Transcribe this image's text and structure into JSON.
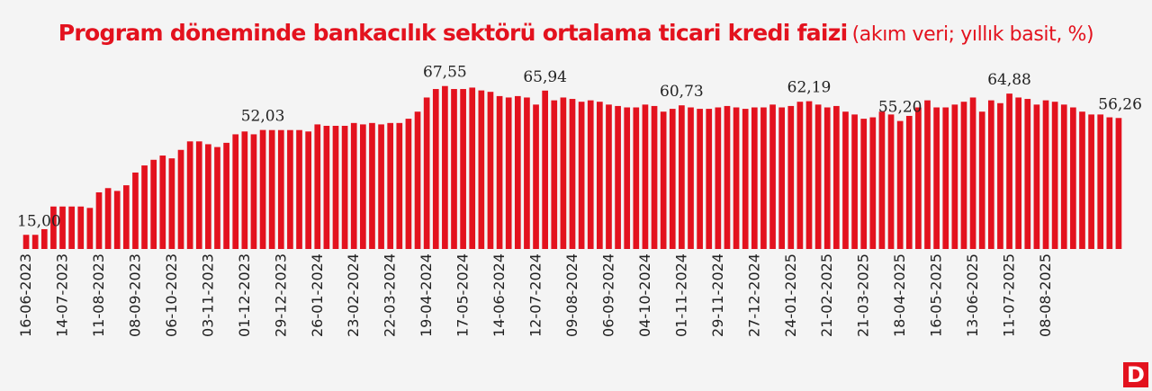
{
  "title": {
    "main": "Program döneminde bankacılık sektörü ortalama ticari kredi faizi",
    "sub": "(akım veri; yıllık basit, %)"
  },
  "brand": {
    "logo_text": "D"
  },
  "colors": {
    "bar": "#e3121e",
    "title": "#e3121e",
    "text": "#222222",
    "background": "#f4f4f4"
  },
  "chart_data": {
    "type": "bar",
    "x_ticks": [
      "16-06-2023",
      "14-07-2023",
      "11-08-2023",
      "08-09-2023",
      "06-10-2023",
      "03-11-2023",
      "01-12-2023",
      "29-12-2023",
      "26-01-2024",
      "23-02-2024",
      "22-03-2024",
      "19-04-2024",
      "17-05-2024",
      "14-06-2024",
      "12-07-2024",
      "09-08-2024",
      "06-09-2024",
      "04-10-2024",
      "01-11-2024",
      "29-11-2024",
      "27-12-2024",
      "24-01-2025",
      "21-02-2025",
      "21-03-2025",
      "18-04-2025",
      "16-05-2025",
      "13-06-2025",
      "11-07-2025",
      "08-08-2025"
    ],
    "values": [
      15.0,
      15.0,
      17.0,
      25.0,
      25.0,
      25.0,
      25.0,
      24.5,
      30.0,
      31.5,
      30.5,
      32.5,
      37.0,
      39.5,
      41.5,
      43.0,
      42.0,
      45.0,
      48.0,
      48.0,
      47.0,
      46.0,
      47.5,
      50.5,
      51.5,
      50.5,
      52.03,
      52.0,
      52.0,
      52.0,
      52.0,
      51.5,
      54.0,
      53.5,
      53.5,
      53.5,
      54.5,
      54.0,
      54.5,
      54.0,
      54.5,
      54.5,
      56.0,
      58.5,
      63.5,
      66.5,
      67.55,
      66.5,
      66.5,
      67.0,
      66.0,
      65.5,
      64.0,
      63.5,
      64.0,
      63.5,
      61.0,
      65.94,
      62.5,
      63.5,
      63.0,
      62.0,
      62.5,
      62.0,
      61.0,
      60.5,
      60.0,
      60.0,
      61.0,
      60.5,
      58.5,
      59.5,
      60.73,
      60.0,
      59.5,
      59.5,
      60.0,
      60.5,
      60.0,
      59.5,
      60.0,
      60.0,
      61.0,
      60.0,
      60.5,
      62.0,
      62.19,
      61.0,
      60.0,
      60.5,
      58.5,
      57.5,
      56.0,
      56.5,
      58.5,
      57.5,
      55.2,
      57.0,
      60.0,
      62.5,
      60.0,
      60.0,
      61.0,
      62.0,
      63.5,
      58.5,
      62.5,
      61.5,
      64.88,
      63.5,
      63.0,
      61.0,
      62.5,
      62.0,
      61.0,
      60.0,
      58.5,
      57.5,
      57.5,
      56.5,
      56.26
    ],
    "data_labels": [
      {
        "index": 0,
        "text": "15,00"
      },
      {
        "index": 26,
        "text": "52,03"
      },
      {
        "index": 46,
        "text": "67,55"
      },
      {
        "index": 57,
        "text": "65,94"
      },
      {
        "index": 72,
        "text": "60,73"
      },
      {
        "index": 86,
        "text": "62,19"
      },
      {
        "index": 96,
        "text": "55,20"
      },
      {
        "index": 108,
        "text": "64,88"
      },
      {
        "index": 120,
        "text": "56,26"
      }
    ],
    "ylim": [
      10,
      72
    ],
    "grid": false,
    "legend": "none"
  }
}
